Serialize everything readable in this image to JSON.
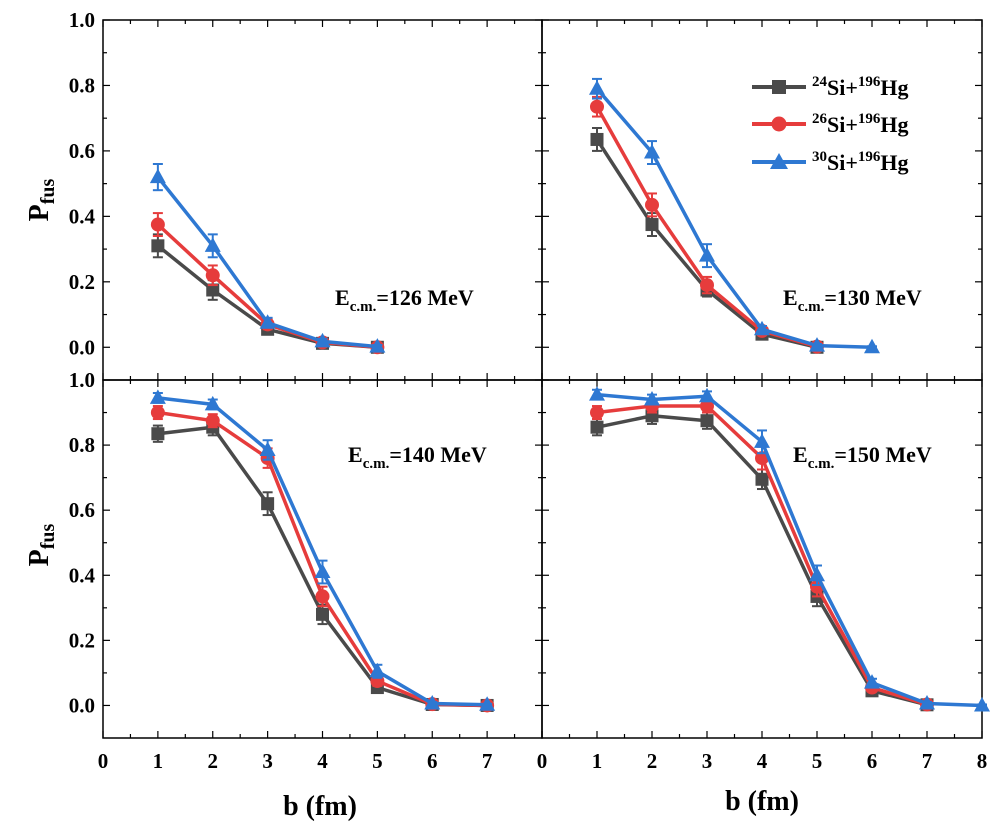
{
  "colors": {
    "series": [
      "#4a4a4a",
      "#e63c3c",
      "#2e78d2"
    ]
  },
  "y_axis_label": {
    "main": "P",
    "sub": "fus"
  },
  "x_axis_label": "b (fm)",
  "legend": {
    "placement": "top-right of upper-right panel",
    "entries": [
      {
        "a1": "24",
        "el1": "Si+",
        "a2": "196",
        "el2": "Hg",
        "marker": "square"
      },
      {
        "a1": "26",
        "el1": "Si+",
        "a2": "196",
        "el2": "Hg",
        "marker": "circle"
      },
      {
        "a1": "30",
        "el1": "Si+",
        "a2": "196",
        "el2": "Hg",
        "marker": "triangle"
      }
    ]
  },
  "chart_data": [
    {
      "type": "line",
      "panel": "top-left",
      "annotation": {
        "main": "E",
        "sub": "c.m.",
        "rest": "=126 MeV"
      },
      "xlim": [
        0,
        8
      ],
      "ylim": [
        -0.1,
        1.0
      ],
      "xticks": [],
      "yticks": [
        "0.0",
        "0.2",
        "0.4",
        "0.6",
        "0.8",
        "1.0"
      ],
      "series": [
        {
          "x": [
            1,
            2,
            3,
            4,
            5
          ],
          "y": [
            0.31,
            0.175,
            0.055,
            0.012,
            0.0
          ],
          "err": [
            0.035,
            0.03,
            0.015,
            0.008,
            0.005
          ]
        },
        {
          "x": [
            1,
            2,
            3,
            4,
            5
          ],
          "y": [
            0.375,
            0.22,
            0.07,
            0.015,
            0.0
          ],
          "err": [
            0.035,
            0.03,
            0.015,
            0.008,
            0.005
          ]
        },
        {
          "x": [
            1,
            2,
            3,
            4,
            5
          ],
          "y": [
            0.52,
            0.31,
            0.075,
            0.018,
            0.002
          ],
          "err": [
            0.04,
            0.035,
            0.015,
            0.008,
            0.005
          ]
        }
      ]
    },
    {
      "type": "line",
      "panel": "top-right",
      "annotation": {
        "main": "E",
        "sub": "c.m.",
        "rest": "=130 MeV"
      },
      "xlim": [
        0,
        8
      ],
      "ylim": [
        -0.1,
        1.0
      ],
      "xticks": [],
      "yticks": [],
      "series": [
        {
          "x": [
            1,
            2,
            3,
            4,
            5
          ],
          "y": [
            0.635,
            0.375,
            0.175,
            0.04,
            0.0
          ],
          "err": [
            0.035,
            0.035,
            0.02,
            0.01,
            0.005
          ]
        },
        {
          "x": [
            1,
            2,
            3,
            4,
            5
          ],
          "y": [
            0.735,
            0.435,
            0.19,
            0.05,
            0.002
          ],
          "err": [
            0.03,
            0.035,
            0.025,
            0.01,
            0.005
          ]
        },
        {
          "x": [
            1,
            2,
            3,
            4,
            5,
            6
          ],
          "y": [
            0.79,
            0.595,
            0.28,
            0.055,
            0.005,
            0.0
          ],
          "err": [
            0.03,
            0.035,
            0.035,
            0.01,
            0.005,
            0.003
          ]
        }
      ]
    },
    {
      "type": "line",
      "panel": "bottom-left",
      "annotation": {
        "main": "E",
        "sub": "c.m.",
        "rest": "=140 MeV"
      },
      "xlim": [
        0,
        8
      ],
      "ylim": [
        -0.1,
        1.0
      ],
      "xticks": [
        "0",
        "1",
        "2",
        "3",
        "4",
        "5",
        "6",
        "7"
      ],
      "yticks": [
        "0.0",
        "0.2",
        "0.4",
        "0.6",
        "0.8",
        "1.0"
      ],
      "series": [
        {
          "x": [
            1,
            2,
            3,
            4,
            5,
            6,
            7
          ],
          "y": [
            0.835,
            0.855,
            0.62,
            0.28,
            0.055,
            0.003,
            0.0
          ],
          "err": [
            0.025,
            0.025,
            0.035,
            0.03,
            0.015,
            0.005,
            0.003
          ]
        },
        {
          "x": [
            1,
            2,
            3,
            4,
            5,
            6,
            7
          ],
          "y": [
            0.9,
            0.875,
            0.76,
            0.335,
            0.075,
            0.004,
            0.0
          ],
          "err": [
            0.02,
            0.02,
            0.03,
            0.03,
            0.015,
            0.005,
            0.003
          ]
        },
        {
          "x": [
            1,
            2,
            3,
            4,
            5,
            6,
            7
          ],
          "y": [
            0.945,
            0.925,
            0.785,
            0.41,
            0.105,
            0.006,
            0.002
          ],
          "err": [
            0.015,
            0.015,
            0.03,
            0.035,
            0.02,
            0.005,
            0.003
          ]
        }
      ]
    },
    {
      "type": "line",
      "panel": "bottom-right",
      "annotation": {
        "main": "E",
        "sub": "c.m.",
        "rest": "=150 MeV"
      },
      "xlim": [
        0,
        8
      ],
      "ylim": [
        -0.1,
        1.0
      ],
      "xticks": [
        "0",
        "1",
        "2",
        "3",
        "4",
        "5",
        "6",
        "7",
        "8"
      ],
      "yticks": [],
      "series": [
        {
          "x": [
            1,
            2,
            3,
            4,
            5,
            6,
            7
          ],
          "y": [
            0.855,
            0.89,
            0.875,
            0.695,
            0.335,
            0.045,
            0.002
          ],
          "err": [
            0.025,
            0.025,
            0.025,
            0.03,
            0.03,
            0.01,
            0.004
          ]
        },
        {
          "x": [
            1,
            2,
            3,
            4,
            5,
            6,
            7
          ],
          "y": [
            0.9,
            0.92,
            0.92,
            0.76,
            0.365,
            0.055,
            0.003
          ],
          "err": [
            0.02,
            0.02,
            0.02,
            0.035,
            0.03,
            0.012,
            0.004
          ]
        },
        {
          "x": [
            1,
            2,
            3,
            4,
            5,
            6,
            7,
            8
          ],
          "y": [
            0.955,
            0.94,
            0.95,
            0.81,
            0.4,
            0.07,
            0.006,
            0.0
          ],
          "err": [
            0.015,
            0.015,
            0.015,
            0.035,
            0.03,
            0.012,
            0.005,
            0.003
          ]
        }
      ]
    }
  ]
}
